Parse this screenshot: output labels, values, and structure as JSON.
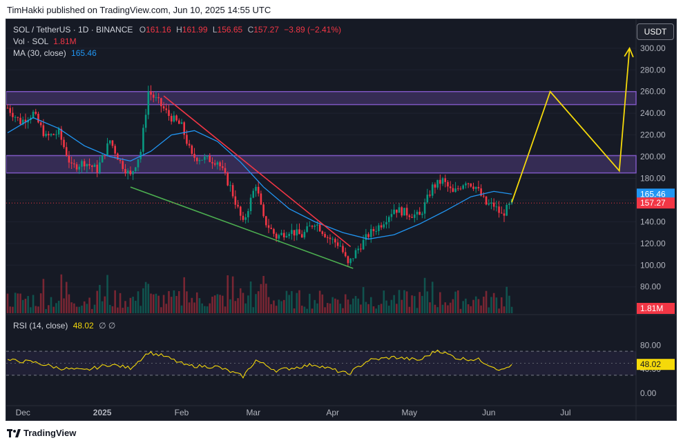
{
  "header": {
    "text": "TimHakki published on TradingView.com, Jun 10, 2025 14:55 UTC"
  },
  "legend": {
    "symbol": "SOL / TetherUS · 1D · BINANCE",
    "o_label": "O",
    "o_value": "161.16",
    "h_label": "H",
    "h_value": "161.99",
    "l_label": "L",
    "l_value": "156.65",
    "c_label": "C",
    "c_value": "157.27",
    "change": "−3.89 (−2.41%)",
    "vol_label": "Vol · SOL",
    "vol_value": "1.81M",
    "ma_label": "MA (30, close)",
    "ma_value": "165.46",
    "rsi_label": "RSI (14, close)",
    "rsi_value": "48.02",
    "rsi_extra": "∅ ∅"
  },
  "currency_button": "USDT",
  "footer": {
    "brand": "TradingView"
  },
  "colors": {
    "up": "#089981",
    "down": "#f23645",
    "ma": "#2196f3",
    "zone": "#7e57c2",
    "yellow": "#f5d90a",
    "green_line": "#4caf50",
    "red_line": "#f23645"
  },
  "chart_data": {
    "type": "candlestick",
    "symbol": "SOL / TetherUS",
    "interval": "1D",
    "exchange": "BINANCE",
    "price_axis": {
      "ticks": [
        "300.00",
        "280.00",
        "260.00",
        "240.00",
        "220.00",
        "200.00",
        "180.00",
        "160.00",
        "140.00",
        "120.00",
        "100.00",
        "80.00"
      ],
      "range": [
        62,
        305
      ]
    },
    "rsi_axis": {
      "ticks": [
        "80.00",
        "40.00",
        "0.00"
      ],
      "range": [
        -15,
        100
      ],
      "bands": [
        70,
        30
      ]
    },
    "time_axis": [
      "Dec",
      "2025",
      "Feb",
      "Mar",
      "Apr",
      "May",
      "Jun",
      "Jul"
    ],
    "price_labels": {
      "ma": "165.46",
      "close": "157.27",
      "volume": "1.81M",
      "rsi": "48.02"
    },
    "last_close": 157.27,
    "last_ma": 165.46,
    "last_rsi": 48.02,
    "resistance_zones": [
      {
        "low": 248,
        "high": 260
      },
      {
        "low": 185,
        "high": 201
      }
    ],
    "trendlines": [
      {
        "name": "upper",
        "from": {
          "date": "2025-01-25",
          "price": 256
        },
        "to": {
          "date": "2025-04-08",
          "price": 117
        }
      },
      {
        "name": "lower",
        "from": {
          "date": "2025-01-12",
          "price": 172
        },
        "to": {
          "date": "2025-04-09",
          "price": 97
        }
      }
    ],
    "projection": [
      {
        "date": "2025-06-10",
        "price": 158
      },
      {
        "date": "2025-06-25",
        "price": 260
      },
      {
        "date": "2025-07-22",
        "price": 187
      },
      {
        "date": "2025-07-26",
        "price": 300
      }
    ],
    "close_series": [
      {
        "date": "2024-11-25",
        "close": 245
      },
      {
        "date": "2024-11-30",
        "close": 232
      },
      {
        "date": "2024-12-05",
        "close": 240
      },
      {
        "date": "2024-12-10",
        "close": 218
      },
      {
        "date": "2024-12-15",
        "close": 222
      },
      {
        "date": "2024-12-20",
        "close": 190
      },
      {
        "date": "2024-12-25",
        "close": 195
      },
      {
        "date": "2024-12-30",
        "close": 188
      },
      {
        "date": "2025-01-04",
        "close": 215
      },
      {
        "date": "2025-01-08",
        "close": 195
      },
      {
        "date": "2025-01-12",
        "close": 182
      },
      {
        "date": "2025-01-16",
        "close": 205
      },
      {
        "date": "2025-01-19",
        "close": 260
      },
      {
        "date": "2025-01-23",
        "close": 250
      },
      {
        "date": "2025-01-27",
        "close": 238
      },
      {
        "date": "2025-02-01",
        "close": 228
      },
      {
        "date": "2025-02-05",
        "close": 200
      },
      {
        "date": "2025-02-10",
        "close": 198
      },
      {
        "date": "2025-02-15",
        "close": 196
      },
      {
        "date": "2025-02-20",
        "close": 172
      },
      {
        "date": "2025-02-25",
        "close": 138
      },
      {
        "date": "2025-03-02",
        "close": 175
      },
      {
        "date": "2025-03-05",
        "close": 142
      },
      {
        "date": "2025-03-10",
        "close": 126
      },
      {
        "date": "2025-03-15",
        "close": 132
      },
      {
        "date": "2025-03-20",
        "close": 127
      },
      {
        "date": "2025-03-25",
        "close": 140
      },
      {
        "date": "2025-03-30",
        "close": 126
      },
      {
        "date": "2025-04-04",
        "close": 118
      },
      {
        "date": "2025-04-07",
        "close": 100
      },
      {
        "date": "2025-04-10",
        "close": 112
      },
      {
        "date": "2025-04-15",
        "close": 128
      },
      {
        "date": "2025-04-20",
        "close": 138
      },
      {
        "date": "2025-04-25",
        "close": 152
      },
      {
        "date": "2025-04-30",
        "close": 148
      },
      {
        "date": "2025-05-05",
        "close": 145
      },
      {
        "date": "2025-05-10",
        "close": 172
      },
      {
        "date": "2025-05-14",
        "close": 178
      },
      {
        "date": "2025-05-18",
        "close": 166
      },
      {
        "date": "2025-05-23",
        "close": 178
      },
      {
        "date": "2025-05-27",
        "close": 172
      },
      {
        "date": "2025-05-31",
        "close": 156
      },
      {
        "date": "2025-06-03",
        "close": 155
      },
      {
        "date": "2025-06-06",
        "close": 146
      },
      {
        "date": "2025-06-10",
        "close": 157.27
      }
    ],
    "ma_series": [
      {
        "date": "2024-11-25",
        "value": 222
      },
      {
        "date": "2024-12-05",
        "value": 236
      },
      {
        "date": "2024-12-15",
        "value": 226
      },
      {
        "date": "2024-12-25",
        "value": 210
      },
      {
        "date": "2025-01-04",
        "value": 200
      },
      {
        "date": "2025-01-12",
        "value": 196
      },
      {
        "date": "2025-01-20",
        "value": 205
      },
      {
        "date": "2025-01-28",
        "value": 220
      },
      {
        "date": "2025-02-06",
        "value": 224
      },
      {
        "date": "2025-02-15",
        "value": 214
      },
      {
        "date": "2025-02-24",
        "value": 195
      },
      {
        "date": "2025-03-05",
        "value": 172
      },
      {
        "date": "2025-03-15",
        "value": 152
      },
      {
        "date": "2025-03-25",
        "value": 140
      },
      {
        "date": "2025-04-05",
        "value": 130
      },
      {
        "date": "2025-04-15",
        "value": 124
      },
      {
        "date": "2025-04-25",
        "value": 128
      },
      {
        "date": "2025-05-05",
        "value": 138
      },
      {
        "date": "2025-05-15",
        "value": 150
      },
      {
        "date": "2025-05-25",
        "value": 163
      },
      {
        "date": "2025-06-03",
        "value": 168
      },
      {
        "date": "2025-06-10",
        "value": 165.46
      }
    ],
    "rsi_series": [
      {
        "date": "2024-11-25",
        "value": 55
      },
      {
        "date": "2024-12-05",
        "value": 52
      },
      {
        "date": "2024-12-15",
        "value": 42
      },
      {
        "date": "2024-12-25",
        "value": 38
      },
      {
        "date": "2025-01-04",
        "value": 48
      },
      {
        "date": "2025-01-12",
        "value": 42
      },
      {
        "date": "2025-01-19",
        "value": 68
      },
      {
        "date": "2025-01-25",
        "value": 62
      },
      {
        "date": "2025-02-03",
        "value": 46
      },
      {
        "date": "2025-02-15",
        "value": 44
      },
      {
        "date": "2025-02-25",
        "value": 28
      },
      {
        "date": "2025-03-02",
        "value": 55
      },
      {
        "date": "2025-03-10",
        "value": 38
      },
      {
        "date": "2025-03-25",
        "value": 48
      },
      {
        "date": "2025-04-07",
        "value": 32
      },
      {
        "date": "2025-04-15",
        "value": 55
      },
      {
        "date": "2025-04-25",
        "value": 60
      },
      {
        "date": "2025-05-05",
        "value": 55
      },
      {
        "date": "2025-05-12",
        "value": 72
      },
      {
        "date": "2025-05-20",
        "value": 58
      },
      {
        "date": "2025-05-28",
        "value": 56
      },
      {
        "date": "2025-06-06",
        "value": 38
      },
      {
        "date": "2025-06-10",
        "value": 48.02
      }
    ]
  }
}
